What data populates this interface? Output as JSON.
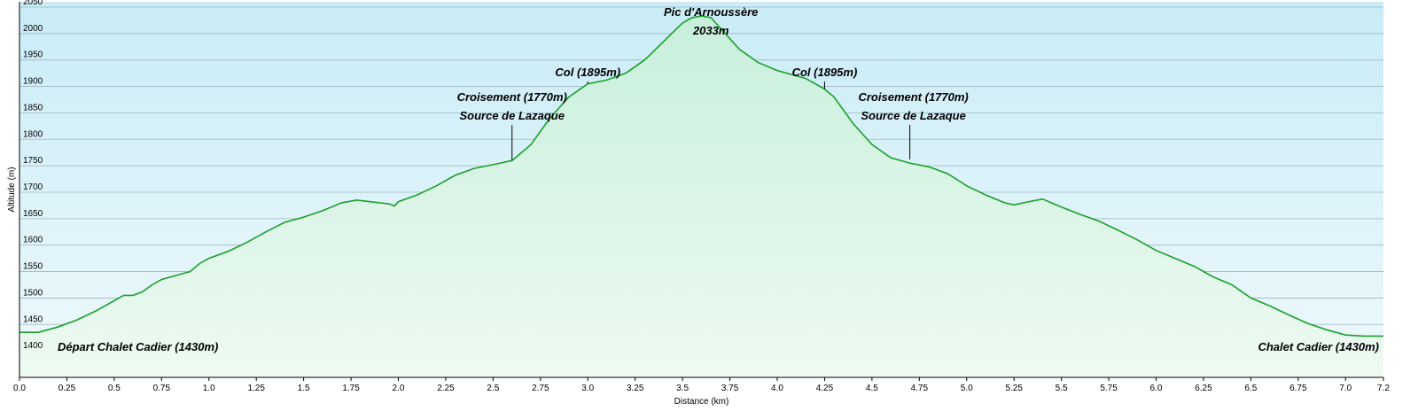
{
  "chart_data": {
    "type": "area",
    "xlabel": "Distance  (km)",
    "ylabel": "Altitude (m)",
    "xlim": [
      0,
      7.2
    ],
    "ylim": [
      1350,
      2060
    ],
    "x_ticks": [
      "0.0",
      "0.25",
      "0.5",
      "0.75",
      "1.0",
      "1.25",
      "1.5",
      "1.75",
      "2.0",
      "2.25",
      "2.5",
      "2.75",
      "3.0",
      "3.25",
      "3.5",
      "3.75",
      "4.0",
      "4.25",
      "4.5",
      "4.75",
      "5.0",
      "5.25",
      "5.5",
      "5.75",
      "6.0",
      "6.25",
      "6.5",
      "6.75",
      "7.0",
      "7.2"
    ],
    "y_ticks": [
      "1400",
      "1450",
      "1500",
      "1550",
      "1600",
      "1650",
      "1700",
      "1750",
      "1800",
      "1850",
      "1900",
      "1950",
      "2000",
      "2050"
    ],
    "grid": true,
    "colors": {
      "line": "#1aa02a",
      "fill_top": "#c8efdc",
      "fill_bottom": "#eefaf2",
      "bg_top": "#c9ecf7",
      "bg_bottom": "#eef9fc"
    },
    "series": [
      {
        "x": [
          0,
          0.1,
          0.2,
          0.3,
          0.4,
          0.5,
          0.55,
          0.6,
          0.65,
          0.7,
          0.75,
          0.8,
          0.85,
          0.9,
          0.95,
          1.0,
          1.1,
          1.2,
          1.3,
          1.4,
          1.5,
          1.6,
          1.7,
          1.78,
          1.85,
          1.95,
          1.98,
          2.0,
          2.1,
          2.2,
          2.3,
          2.4,
          2.5,
          2.6,
          2.7,
          2.8,
          2.9,
          3.0,
          3.1,
          3.2,
          3.3,
          3.4,
          3.5,
          3.55,
          3.6,
          3.65,
          3.7,
          3.75,
          3.8,
          3.9,
          4.0,
          4.1,
          4.15,
          4.2,
          4.25,
          4.3,
          4.4,
          4.5,
          4.6,
          4.7,
          4.8,
          4.9,
          5.0,
          5.1,
          5.2,
          5.25,
          5.3,
          5.4,
          5.5,
          5.6,
          5.7,
          5.8,
          5.9,
          6.0,
          6.1,
          6.2,
          6.3,
          6.4,
          6.5,
          6.6,
          6.7,
          6.8,
          6.9,
          7.0,
          7.1,
          7.2
        ],
        "y": [
          1435,
          1435,
          1445,
          1458,
          1475,
          1495,
          1505,
          1505,
          1512,
          1525,
          1535,
          1540,
          1545,
          1550,
          1565,
          1575,
          1588,
          1605,
          1625,
          1643,
          1653,
          1665,
          1680,
          1685,
          1682,
          1678,
          1674,
          1682,
          1695,
          1712,
          1732,
          1745,
          1752,
          1760,
          1790,
          1840,
          1880,
          1905,
          1912,
          1925,
          1950,
          1985,
          2020,
          2030,
          2033,
          2030,
          2010,
          1990,
          1970,
          1945,
          1930,
          1920,
          1915,
          1905,
          1895,
          1880,
          1830,
          1790,
          1765,
          1755,
          1748,
          1735,
          1712,
          1695,
          1680,
          1676,
          1680,
          1687,
          1672,
          1658,
          1645,
          1628,
          1610,
          1590,
          1575,
          1560,
          1540,
          1525,
          1500,
          1485,
          1468,
          1452,
          1440,
          1430,
          1428,
          1428
        ]
      }
    ],
    "annotations": [
      {
        "lines": [
          "Pic d'Arnoussère",
          "2033m"
        ],
        "x": 3.65,
        "y": 2033
      },
      {
        "lines": [
          "Col (1895m)"
        ],
        "x": 3.0,
        "y": 1905
      },
      {
        "lines": [
          "Croisement (1770m)",
          "Source de Lazaque"
        ],
        "x": 2.6,
        "y": 1760
      },
      {
        "lines": [
          "Col (1895m)"
        ],
        "x": 4.25,
        "y": 1895
      },
      {
        "lines": [
          "Croisement (1770m)",
          "Source de Lazaque"
        ],
        "x": 4.7,
        "y": 1762
      },
      {
        "lines": [
          "Départ Chalet Cadier (1430m)"
        ],
        "x": 0,
        "y": 1430
      },
      {
        "lines": [
          "Chalet Cadier (1430m)"
        ],
        "x": 7.2,
        "y": 1428
      }
    ]
  }
}
